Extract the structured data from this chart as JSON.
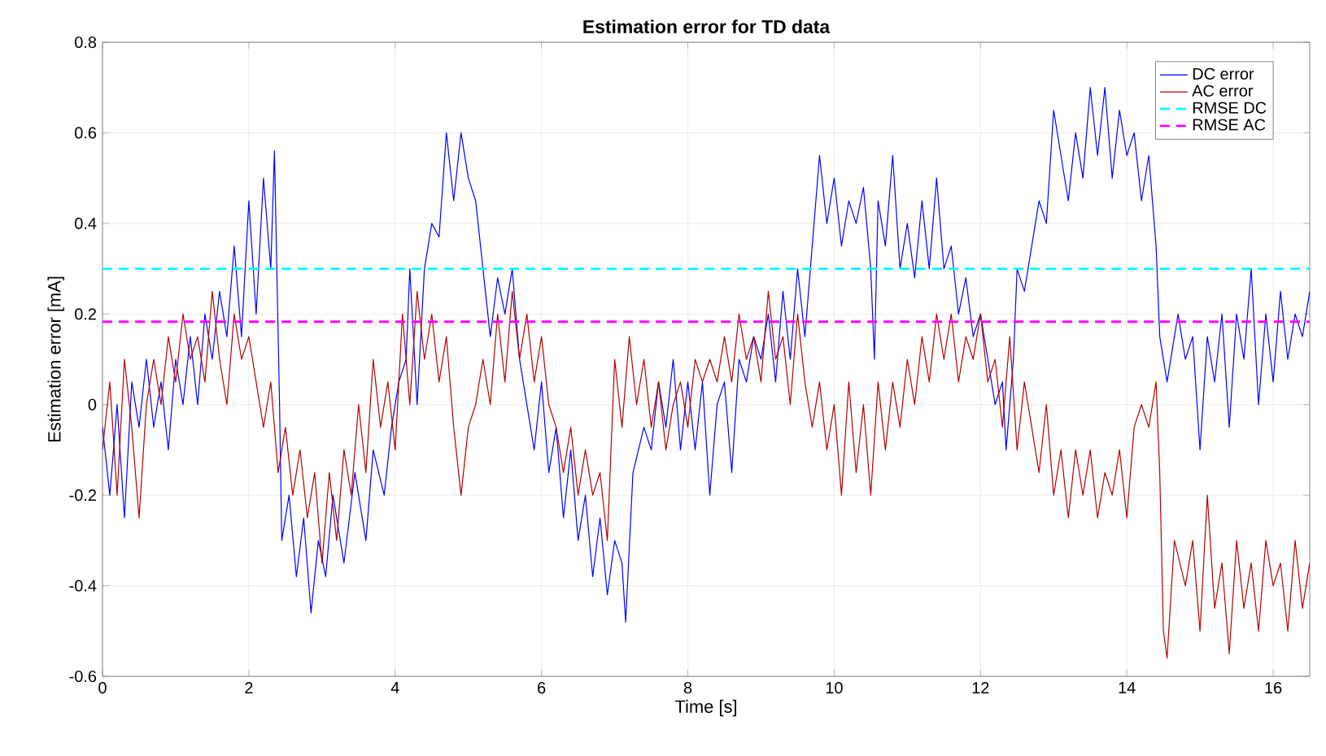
{
  "chart_data": {
    "type": "line",
    "title": "Estimation error for TD data",
    "xlabel": "Time [s]",
    "ylabel": "Estimation error [mA]",
    "xlim": [
      0,
      16.5
    ],
    "ylim": [
      -0.6,
      0.8
    ],
    "xticks": [
      0,
      2,
      4,
      6,
      8,
      10,
      12,
      14,
      16
    ],
    "yticks": [
      -0.6,
      -0.4,
      -0.2,
      0,
      0.2,
      0.4,
      0.6,
      0.8
    ],
    "grid": true,
    "legend": "top right",
    "line_style": "solid",
    "marker": "none",
    "series": [
      {
        "name": "DC error",
        "color": "#0000ff",
        "x": [
          0,
          0.1,
          0.2,
          0.3,
          0.4,
          0.5,
          0.6,
          0.7,
          0.8,
          0.9,
          1.0,
          1.1,
          1.2,
          1.3,
          1.4,
          1.5,
          1.6,
          1.7,
          1.8,
          1.9,
          2.0,
          2.1,
          2.2,
          2.3,
          2.35,
          2.42,
          2.45,
          2.55,
          2.65,
          2.75,
          2.85,
          2.95,
          3.05,
          3.15,
          3.3,
          3.45,
          3.6,
          3.7,
          3.85,
          3.95,
          4.05,
          4.15,
          4.2,
          4.3,
          4.4,
          4.5,
          4.6,
          4.7,
          4.8,
          4.9,
          5.0,
          5.1,
          5.2,
          5.3,
          5.4,
          5.5,
          5.6,
          5.7,
          5.8,
          5.9,
          6.0,
          6.1,
          6.2,
          6.3,
          6.4,
          6.5,
          6.6,
          6.7,
          6.8,
          6.9,
          7.0,
          7.1,
          7.15,
          7.25,
          7.4,
          7.5,
          7.6,
          7.7,
          7.8,
          7.9,
          8.0,
          8.1,
          8.2,
          8.3,
          8.4,
          8.5,
          8.6,
          8.7,
          8.8,
          8.9,
          9.0,
          9.1,
          9.2,
          9.3,
          9.4,
          9.5,
          9.6,
          9.7,
          9.8,
          9.9,
          10.0,
          10.1,
          10.2,
          10.3,
          10.4,
          10.5,
          10.55,
          10.6,
          10.7,
          10.8,
          10.9,
          11.0,
          11.1,
          11.2,
          11.3,
          11.4,
          11.5,
          11.6,
          11.7,
          11.8,
          11.9,
          12.0,
          12.1,
          12.2,
          12.3,
          12.35,
          12.45,
          12.5,
          12.6,
          12.7,
          12.8,
          12.9,
          13.0,
          13.1,
          13.2,
          13.3,
          13.4,
          13.5,
          13.6,
          13.7,
          13.8,
          13.9,
          14.0,
          14.1,
          14.2,
          14.3,
          14.4,
          14.45,
          14.55,
          14.7,
          14.8,
          14.9,
          15.0,
          15.1,
          15.2,
          15.3,
          15.4,
          15.5,
          15.6,
          15.7,
          15.8,
          15.9,
          16.0,
          16.1,
          16.2,
          16.3,
          16.4,
          16.5
        ],
        "values": [
          -0.05,
          -0.2,
          0.0,
          -0.25,
          0.05,
          -0.05,
          0.1,
          -0.05,
          0.05,
          -0.1,
          0.1,
          0.0,
          0.15,
          0.0,
          0.2,
          0.1,
          0.25,
          0.15,
          0.35,
          0.15,
          0.45,
          0.2,
          0.5,
          0.3,
          0.56,
          0.0,
          -0.3,
          -0.2,
          -0.38,
          -0.25,
          -0.46,
          -0.3,
          -0.38,
          -0.2,
          -0.35,
          -0.15,
          -0.3,
          -0.1,
          -0.2,
          -0.05,
          0.05,
          0.1,
          0.3,
          0.0,
          0.3,
          0.4,
          0.37,
          0.6,
          0.45,
          0.6,
          0.5,
          0.45,
          0.3,
          0.15,
          0.28,
          0.2,
          0.3,
          0.1,
          0.0,
          -0.1,
          0.05,
          -0.15,
          -0.05,
          -0.25,
          -0.1,
          -0.3,
          -0.2,
          -0.38,
          -0.25,
          -0.42,
          -0.3,
          -0.35,
          -0.48,
          -0.15,
          -0.05,
          -0.1,
          0.05,
          -0.05,
          0.1,
          -0.1,
          0.05,
          -0.1,
          0.05,
          -0.2,
          0.0,
          0.05,
          -0.15,
          0.1,
          0.05,
          0.15,
          0.1,
          0.2,
          0.05,
          0.25,
          0.1,
          0.3,
          0.15,
          0.35,
          0.55,
          0.4,
          0.5,
          0.35,
          0.45,
          0.4,
          0.48,
          0.3,
          0.1,
          0.45,
          0.35,
          0.55,
          0.3,
          0.4,
          0.28,
          0.45,
          0.3,
          0.5,
          0.3,
          0.35,
          0.2,
          0.28,
          0.15,
          0.2,
          0.1,
          0.0,
          0.05,
          -0.1,
          0.1,
          0.3,
          0.25,
          0.35,
          0.45,
          0.4,
          0.65,
          0.55,
          0.45,
          0.6,
          0.5,
          0.7,
          0.55,
          0.7,
          0.5,
          0.65,
          0.55,
          0.6,
          0.45,
          0.55,
          0.35,
          0.15,
          0.05,
          0.2,
          0.1,
          0.15,
          -0.1,
          0.15,
          0.05,
          0.2,
          -0.05,
          0.2,
          0.1,
          0.3,
          0.0,
          0.2,
          0.05,
          0.25,
          0.1,
          0.2,
          0.15,
          0.25
        ]
      },
      {
        "name": "AC error",
        "color": "#b20000",
        "x": [
          0,
          0.1,
          0.2,
          0.3,
          0.4,
          0.5,
          0.6,
          0.7,
          0.8,
          0.9,
          1.0,
          1.1,
          1.2,
          1.3,
          1.4,
          1.5,
          1.6,
          1.7,
          1.8,
          1.9,
          2.0,
          2.1,
          2.2,
          2.3,
          2.4,
          2.5,
          2.6,
          2.7,
          2.8,
          2.9,
          3.0,
          3.1,
          3.2,
          3.3,
          3.4,
          3.5,
          3.6,
          3.7,
          3.8,
          3.9,
          4.0,
          4.1,
          4.2,
          4.3,
          4.4,
          4.5,
          4.6,
          4.7,
          4.8,
          4.9,
          5.0,
          5.1,
          5.2,
          5.3,
          5.4,
          5.5,
          5.6,
          5.7,
          5.8,
          5.9,
          6.0,
          6.1,
          6.2,
          6.3,
          6.4,
          6.5,
          6.6,
          6.7,
          6.8,
          6.9,
          7.0,
          7.1,
          7.2,
          7.3,
          7.4,
          7.5,
          7.6,
          7.7,
          7.8,
          7.9,
          8.0,
          8.1,
          8.2,
          8.3,
          8.4,
          8.5,
          8.6,
          8.7,
          8.8,
          8.9,
          9.0,
          9.1,
          9.2,
          9.3,
          9.4,
          9.5,
          9.6,
          9.7,
          9.8,
          9.9,
          10.0,
          10.1,
          10.2,
          10.3,
          10.4,
          10.5,
          10.6,
          10.7,
          10.8,
          10.9,
          11.0,
          11.1,
          11.2,
          11.3,
          11.4,
          11.5,
          11.6,
          11.7,
          11.8,
          11.9,
          12.0,
          12.1,
          12.2,
          12.3,
          12.4,
          12.5,
          12.6,
          12.7,
          12.8,
          12.9,
          13.0,
          13.1,
          13.2,
          13.3,
          13.4,
          13.5,
          13.6,
          13.7,
          13.8,
          13.9,
          14.0,
          14.1,
          14.2,
          14.3,
          14.4,
          14.45,
          14.5,
          14.55,
          14.65,
          14.8,
          14.9,
          15.0,
          15.1,
          15.2,
          15.3,
          15.4,
          15.5,
          15.6,
          15.7,
          15.8,
          15.9,
          16.0,
          16.1,
          16.2,
          16.3,
          16.4,
          16.5
        ],
        "values": [
          -0.1,
          0.05,
          -0.2,
          0.1,
          -0.05,
          -0.25,
          0.0,
          0.1,
          0.0,
          0.15,
          0.05,
          0.2,
          0.1,
          0.15,
          0.05,
          0.25,
          0.1,
          0.0,
          0.2,
          0.1,
          0.15,
          0.05,
          -0.05,
          0.05,
          -0.15,
          -0.05,
          -0.2,
          -0.1,
          -0.25,
          -0.15,
          -0.35,
          -0.15,
          -0.3,
          -0.1,
          -0.2,
          0.0,
          -0.15,
          0.1,
          -0.05,
          0.05,
          -0.1,
          0.2,
          0.0,
          0.25,
          0.1,
          0.2,
          0.05,
          0.15,
          -0.05,
          -0.2,
          -0.05,
          0.0,
          0.1,
          0.0,
          0.2,
          0.05,
          0.25,
          0.1,
          0.2,
          0.05,
          0.15,
          0.0,
          -0.05,
          -0.15,
          -0.05,
          -0.2,
          -0.1,
          -0.2,
          -0.15,
          -0.3,
          0.1,
          -0.05,
          0.15,
          0.0,
          0.1,
          -0.05,
          0.05,
          -0.1,
          0.0,
          0.05,
          -0.05,
          0.1,
          0.05,
          0.1,
          0.05,
          0.15,
          0.05,
          0.2,
          0.1,
          0.15,
          0.05,
          0.25,
          0.1,
          0.15,
          0.0,
          0.2,
          0.05,
          -0.05,
          0.05,
          -0.1,
          0.0,
          -0.2,
          0.05,
          -0.15,
          0.0,
          -0.2,
          0.05,
          -0.1,
          0.05,
          -0.05,
          0.1,
          0.0,
          0.15,
          0.05,
          0.2,
          0.1,
          0.2,
          0.05,
          0.15,
          0.1,
          0.2,
          0.05,
          0.1,
          -0.05,
          0.15,
          -0.1,
          0.05,
          -0.05,
          -0.15,
          0.0,
          -0.2,
          -0.1,
          -0.25,
          -0.1,
          -0.2,
          -0.1,
          -0.25,
          -0.15,
          -0.2,
          -0.1,
          -0.25,
          -0.05,
          0.0,
          -0.05,
          0.05,
          -0.15,
          -0.5,
          -0.56,
          -0.3,
          -0.4,
          -0.3,
          -0.5,
          -0.2,
          -0.45,
          -0.35,
          -0.55,
          -0.3,
          -0.45,
          -0.35,
          -0.5,
          -0.3,
          -0.4,
          -0.35,
          -0.5,
          -0.3,
          -0.45,
          -0.35
        ]
      }
    ],
    "ref_lines": [
      {
        "axis": "y",
        "value": 0.3,
        "label": "RMSE DC",
        "color": "#00ffff",
        "line_style": "dashed"
      },
      {
        "axis": "y",
        "value": 0.183,
        "label": "RMSE AC",
        "color": "#ff00ff",
        "line_style": "dashed"
      }
    ]
  }
}
